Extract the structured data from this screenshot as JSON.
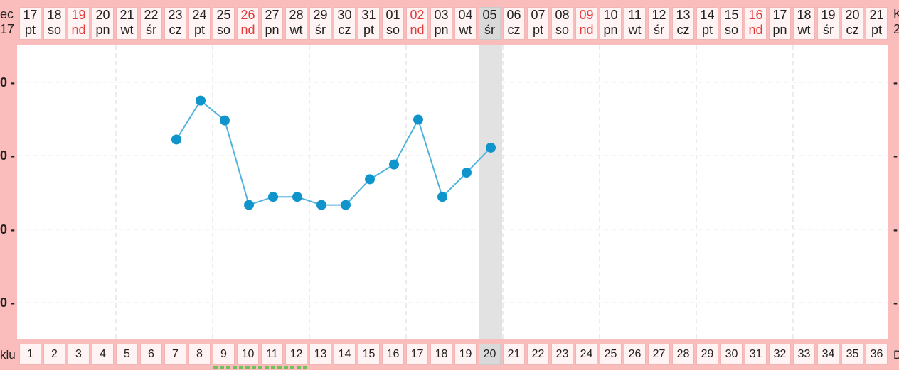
{
  "header": {
    "left_label_top": "ec",
    "left_label_bottom": "17",
    "right_label_top": "K",
    "right_label_bottom": "2",
    "days": [
      {
        "d": "17",
        "w": "pt"
      },
      {
        "d": "18",
        "w": "so"
      },
      {
        "d": "19",
        "w": "nd"
      },
      {
        "d": "20",
        "w": "pn"
      },
      {
        "d": "21",
        "w": "wt"
      },
      {
        "d": "22",
        "w": "śr"
      },
      {
        "d": "23",
        "w": "cz"
      },
      {
        "d": "24",
        "w": "pt"
      },
      {
        "d": "25",
        "w": "so"
      },
      {
        "d": "26",
        "w": "nd"
      },
      {
        "d": "27",
        "w": "pn"
      },
      {
        "d": "28",
        "w": "wt"
      },
      {
        "d": "29",
        "w": "śr"
      },
      {
        "d": "30",
        "w": "cz"
      },
      {
        "d": "31",
        "w": "pt"
      },
      {
        "d": "01",
        "w": "so"
      },
      {
        "d": "02",
        "w": "nd"
      },
      {
        "d": "03",
        "w": "pn"
      },
      {
        "d": "04",
        "w": "wt"
      },
      {
        "d": "05",
        "w": "śr"
      },
      {
        "d": "06",
        "w": "cz"
      },
      {
        "d": "07",
        "w": "pt"
      },
      {
        "d": "08",
        "w": "so"
      },
      {
        "d": "09",
        "w": "nd"
      },
      {
        "d": "10",
        "w": "pn"
      },
      {
        "d": "11",
        "w": "wt"
      },
      {
        "d": "12",
        "w": "śr"
      },
      {
        "d": "13",
        "w": "cz"
      },
      {
        "d": "14",
        "w": "pt"
      },
      {
        "d": "15",
        "w": "so"
      },
      {
        "d": "16",
        "w": "nd"
      },
      {
        "d": "17",
        "w": "pn"
      },
      {
        "d": "18",
        "w": "wt"
      },
      {
        "d": "19",
        "w": "śr"
      },
      {
        "d": "20",
        "w": "cz"
      },
      {
        "d": "21",
        "w": "pt"
      }
    ],
    "today_index": 19
  },
  "footer": {
    "left_label": "klu",
    "right_label": "D",
    "cycle_days": [
      "1",
      "2",
      "3",
      "4",
      "5",
      "6",
      "7",
      "8",
      "9",
      "10",
      "11",
      "12",
      "13",
      "14",
      "15",
      "16",
      "17",
      "18",
      "19",
      "20",
      "21",
      "22",
      "23",
      "24",
      "25",
      "26",
      "27",
      "28",
      "29",
      "30",
      "31",
      "32",
      "33",
      "34",
      "35",
      "36"
    ]
  },
  "y_labels": [
    "0 -",
    "0 -",
    "0 -",
    "0 -",
    "0 -"
  ],
  "colors": {
    "line": "#4fb3dc",
    "point": "#0f94cc",
    "sunday": "#e2393b",
    "today_band": "#e2e2e2",
    "background": "#fbbcbc",
    "bottom_marks": "#6fc25a"
  },
  "chart_data": {
    "type": "line",
    "xlabel": "",
    "ylabel": "",
    "x": [
      7,
      8,
      9,
      10,
      11,
      12,
      13,
      14,
      15,
      16,
      17,
      18,
      19,
      20
    ],
    "ylim": [
      0,
      4
    ],
    "y_gridlines": [
      0.5,
      1.5,
      2.5,
      3.5
    ],
    "values": [
      2.72,
      3.25,
      2.98,
      1.83,
      1.94,
      1.94,
      1.83,
      1.83,
      2.18,
      2.38,
      2.99,
      1.94,
      2.27,
      2.61
    ],
    "grid": true
  }
}
